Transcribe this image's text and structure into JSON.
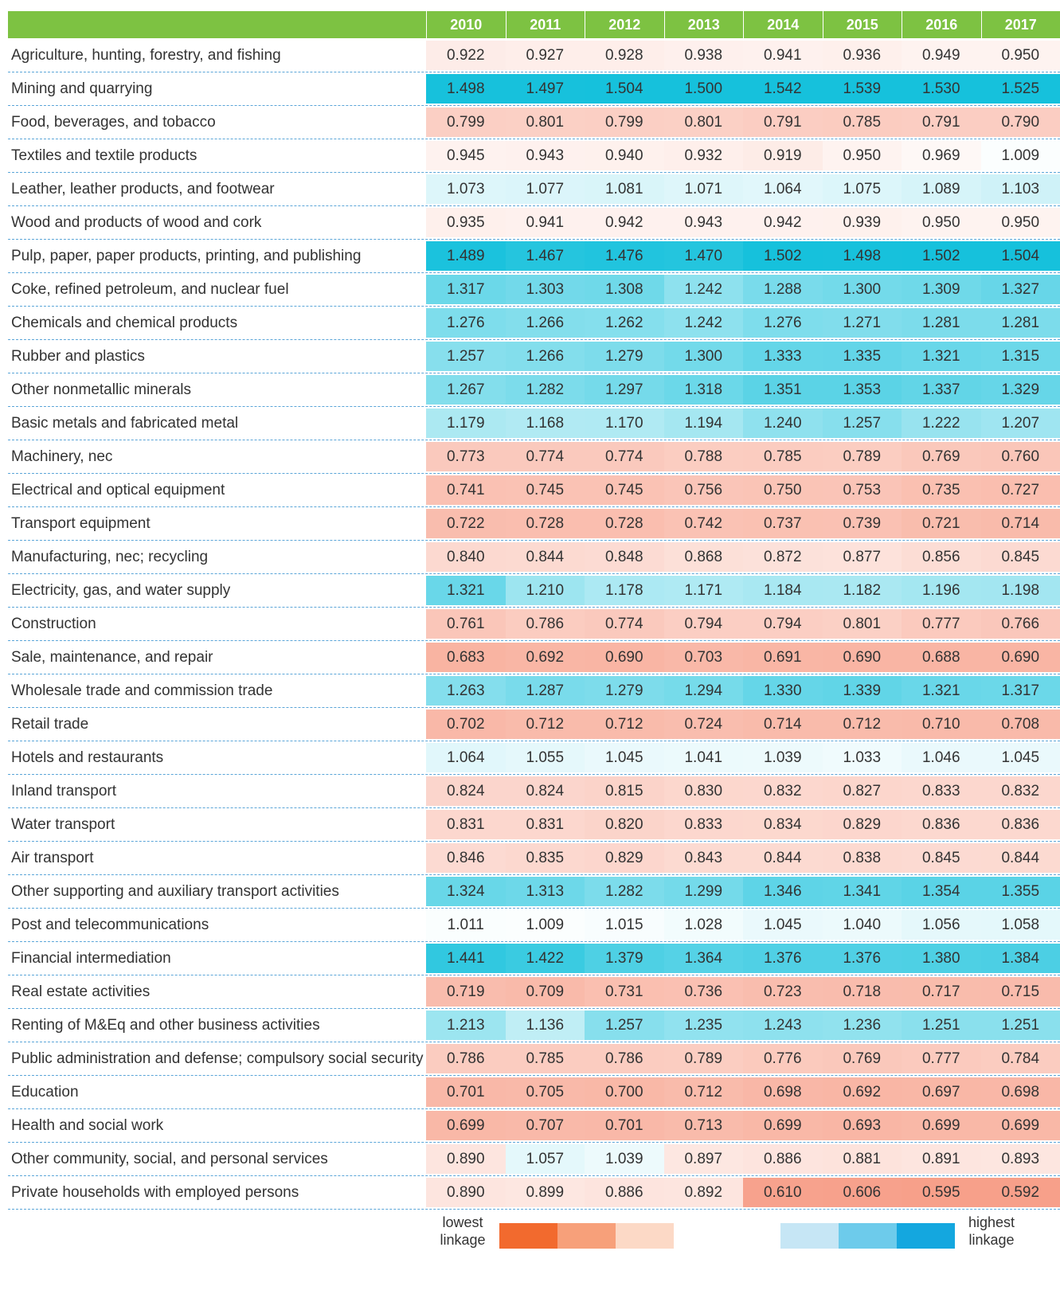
{
  "table": {
    "header": [
      "2010",
      "2011",
      "2012",
      "2013",
      "2014",
      "2015",
      "2016",
      "2017"
    ],
    "rows": [
      {
        "label": "Agriculture, hunting, forestry, and fishing",
        "values": [
          "0.922",
          "0.927",
          "0.928",
          "0.938",
          "0.941",
          "0.936",
          "0.949",
          "0.950"
        ]
      },
      {
        "label": "Mining and quarrying",
        "values": [
          "1.498",
          "1.497",
          "1.504",
          "1.500",
          "1.542",
          "1.539",
          "1.530",
          "1.525"
        ]
      },
      {
        "label": "Food, beverages, and tobacco",
        "values": [
          "0.799",
          "0.801",
          "0.799",
          "0.801",
          "0.791",
          "0.785",
          "0.791",
          "0.790"
        ]
      },
      {
        "label": "Textiles and textile products",
        "values": [
          "0.945",
          "0.943",
          "0.940",
          "0.932",
          "0.919",
          "0.950",
          "0.969",
          "1.009"
        ]
      },
      {
        "label": "Leather, leather products, and footwear",
        "values": [
          "1.073",
          "1.077",
          "1.081",
          "1.071",
          "1.064",
          "1.075",
          "1.089",
          "1.103"
        ]
      },
      {
        "label": "Wood and products of wood and cork",
        "values": [
          "0.935",
          "0.941",
          "0.942",
          "0.943",
          "0.942",
          "0.939",
          "0.950",
          "0.950"
        ]
      },
      {
        "label": "Pulp, paper, paper products, printing, and publishing",
        "values": [
          "1.489",
          "1.467",
          "1.476",
          "1.470",
          "1.502",
          "1.498",
          "1.502",
          "1.504"
        ]
      },
      {
        "label": "Coke, refined petroleum, and nuclear fuel",
        "values": [
          "1.317",
          "1.303",
          "1.308",
          "1.242",
          "1.288",
          "1.300",
          "1.309",
          "1.327"
        ]
      },
      {
        "label": "Chemicals and chemical products",
        "values": [
          "1.276",
          "1.266",
          "1.262",
          "1.242",
          "1.276",
          "1.271",
          "1.281",
          "1.281"
        ]
      },
      {
        "label": "Rubber and plastics",
        "values": [
          "1.257",
          "1.266",
          "1.279",
          "1.300",
          "1.333",
          "1.335",
          "1.321",
          "1.315"
        ]
      },
      {
        "label": "Other nonmetallic minerals",
        "values": [
          "1.267",
          "1.282",
          "1.297",
          "1.318",
          "1.351",
          "1.353",
          "1.337",
          "1.329"
        ]
      },
      {
        "label": "Basic metals and fabricated metal",
        "values": [
          "1.179",
          "1.168",
          "1.170",
          "1.194",
          "1.240",
          "1.257",
          "1.222",
          "1.207"
        ]
      },
      {
        "label": "Machinery, nec",
        "values": [
          "0.773",
          "0.774",
          "0.774",
          "0.788",
          "0.785",
          "0.789",
          "0.769",
          "0.760"
        ]
      },
      {
        "label": "Electrical and optical equipment",
        "values": [
          "0.741",
          "0.745",
          "0.745",
          "0.756",
          "0.750",
          "0.753",
          "0.735",
          "0.727"
        ]
      },
      {
        "label": "Transport equipment",
        "values": [
          "0.722",
          "0.728",
          "0.728",
          "0.742",
          "0.737",
          "0.739",
          "0.721",
          "0.714"
        ]
      },
      {
        "label": "Manufacturing, nec; recycling",
        "values": [
          "0.840",
          "0.844",
          "0.848",
          "0.868",
          "0.872",
          "0.877",
          "0.856",
          "0.845"
        ]
      },
      {
        "label": "Electricity, gas, and water supply",
        "values": [
          "1.321",
          "1.210",
          "1.178",
          "1.171",
          "1.184",
          "1.182",
          "1.196",
          "1.198"
        ]
      },
      {
        "label": "Construction",
        "values": [
          "0.761",
          "0.786",
          "0.774",
          "0.794",
          "0.794",
          "0.801",
          "0.777",
          "0.766"
        ]
      },
      {
        "label": "Sale, maintenance, and repair",
        "values": [
          "0.683",
          "0.692",
          "0.690",
          "0.703",
          "0.691",
          "0.690",
          "0.688",
          "0.690"
        ]
      },
      {
        "label": "Wholesale trade and commission trade",
        "values": [
          "1.263",
          "1.287",
          "1.279",
          "1.294",
          "1.330",
          "1.339",
          "1.321",
          "1.317"
        ]
      },
      {
        "label": "Retail trade",
        "values": [
          "0.702",
          "0.712",
          "0.712",
          "0.724",
          "0.714",
          "0.712",
          "0.710",
          "0.708"
        ]
      },
      {
        "label": "Hotels and restaurants",
        "values": [
          "1.064",
          "1.055",
          "1.045",
          "1.041",
          "1.039",
          "1.033",
          "1.046",
          "1.045"
        ]
      },
      {
        "label": "Inland transport",
        "values": [
          "0.824",
          "0.824",
          "0.815",
          "0.830",
          "0.832",
          "0.827",
          "0.833",
          "0.832"
        ]
      },
      {
        "label": "Water transport",
        "values": [
          "0.831",
          "0.831",
          "0.820",
          "0.833",
          "0.834",
          "0.829",
          "0.836",
          "0.836"
        ]
      },
      {
        "label": "Air transport",
        "values": [
          "0.846",
          "0.835",
          "0.829",
          "0.843",
          "0.844",
          "0.838",
          "0.845",
          "0.844"
        ]
      },
      {
        "label": "Other supporting and auxiliary transport activities",
        "values": [
          "1.324",
          "1.313",
          "1.282",
          "1.299",
          "1.346",
          "1.341",
          "1.354",
          "1.355"
        ]
      },
      {
        "label": "Post and telecommunications",
        "values": [
          "1.011",
          "1.009",
          "1.015",
          "1.028",
          "1.045",
          "1.040",
          "1.056",
          "1.058"
        ]
      },
      {
        "label": "Financial intermediation",
        "values": [
          "1.441",
          "1.422",
          "1.379",
          "1.364",
          "1.376",
          "1.376",
          "1.380",
          "1.384"
        ]
      },
      {
        "label": "Real estate activities",
        "values": [
          "0.719",
          "0.709",
          "0.731",
          "0.736",
          "0.723",
          "0.718",
          "0.717",
          "0.715"
        ]
      },
      {
        "label": "Renting of M&Eq and other business activities",
        "values": [
          "1.213",
          "1.136",
          "1.257",
          "1.235",
          "1.243",
          "1.236",
          "1.251",
          "1.251"
        ]
      },
      {
        "label": "Public administration and defense; compulsory social security",
        "values": [
          "0.786",
          "0.785",
          "0.786",
          "0.789",
          "0.776",
          "0.769",
          "0.777",
          "0.784"
        ]
      },
      {
        "label": "Education",
        "values": [
          "0.701",
          "0.705",
          "0.700",
          "0.712",
          "0.698",
          "0.692",
          "0.697",
          "0.698"
        ]
      },
      {
        "label": "Health and social work",
        "values": [
          "0.699",
          "0.707",
          "0.701",
          "0.713",
          "0.699",
          "0.693",
          "0.699",
          "0.699"
        ]
      },
      {
        "label": "Other community, social, and personal services",
        "values": [
          "0.890",
          "1.057",
          "1.039",
          "0.897",
          "0.886",
          "0.881",
          "0.891",
          "0.893"
        ]
      },
      {
        "label": "Private households with employed persons",
        "values": [
          "0.890",
          "0.899",
          "0.886",
          "0.892",
          "0.610",
          "0.606",
          "0.595",
          "0.592"
        ]
      }
    ]
  },
  "legend": {
    "low_label": "lowest linkage",
    "high_label": "highest linkage",
    "low_colors": [
      "#f26a2e",
      "#f7a07a",
      "#fcd9c6"
    ],
    "high_colors": [
      "#c6e6f5",
      "#6dcbeb",
      "#14a7df"
    ],
    "cell_low_color": "#f7a08a",
    "cell_high_color": "#16c1dc",
    "header_color": "#7dc242"
  }
}
